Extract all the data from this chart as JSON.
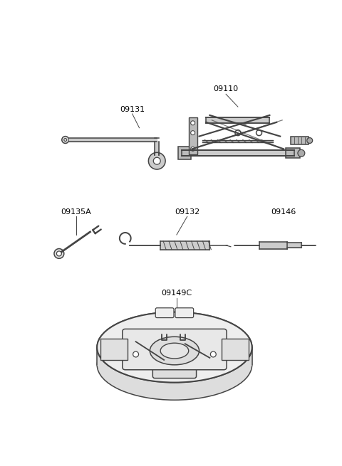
{
  "background_color": "#ffffff",
  "line_color": "#444444",
  "label_color": "#000000",
  "figsize": [
    4.8,
    6.55
  ],
  "dpi": 100,
  "font_size": 8.0,
  "lw_main": 1.1
}
